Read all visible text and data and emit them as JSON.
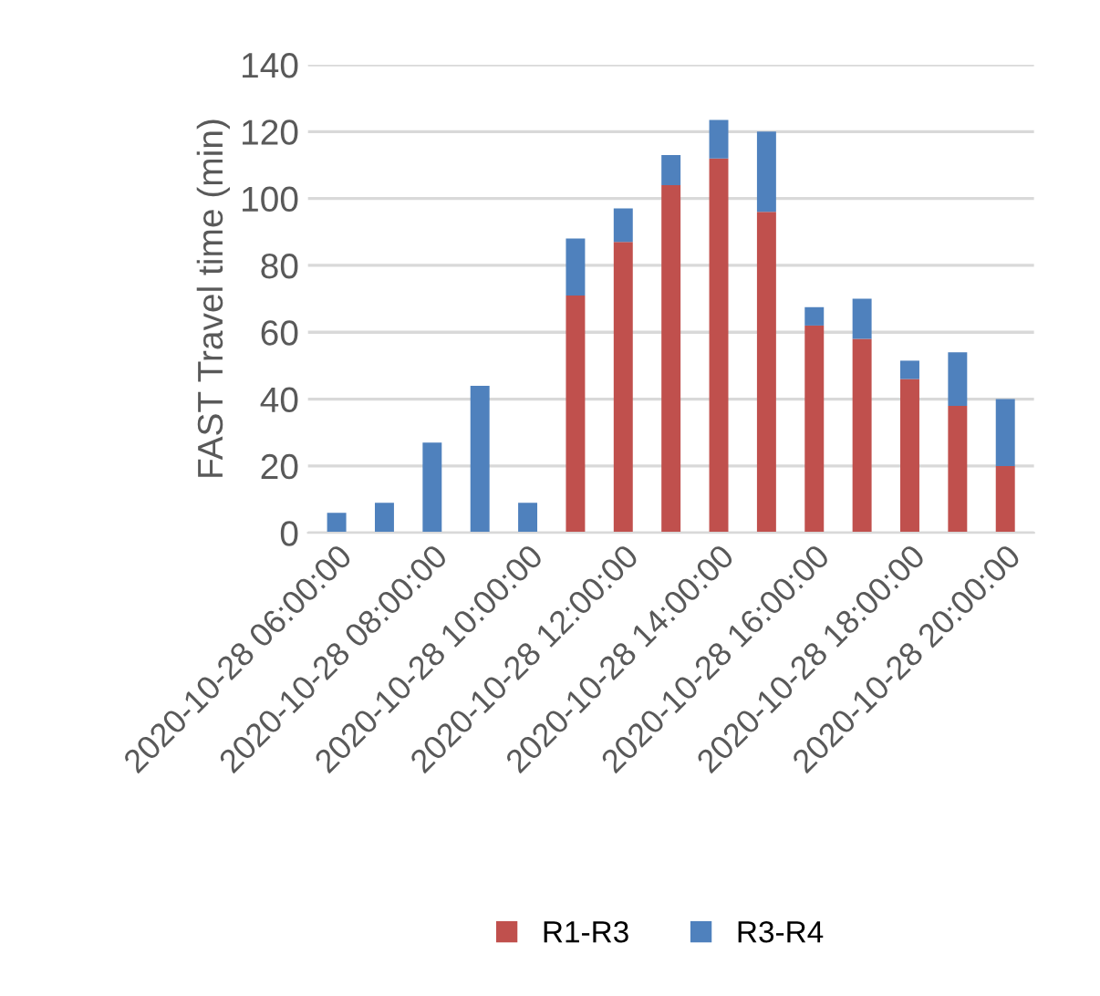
{
  "chart_data": {
    "type": "bar",
    "stacked": true,
    "ylabel": "FAST Travel time (min)",
    "categories": [
      "2020-10-28 06:00:00",
      null,
      "2020-10-28 08:00:00",
      null,
      "2020-10-28 10:00:00",
      null,
      "2020-10-28 12:00:00",
      null,
      "2020-10-28 14:00:00",
      null,
      "2020-10-28 16:00:00",
      null,
      "2020-10-28 18:00:00",
      null,
      "2020-10-28 20:00:00"
    ],
    "series": [
      {
        "name": "R1-R3",
        "color": "#c0504d",
        "values": [
          0,
          0,
          0,
          0,
          0,
          71,
          87,
          104,
          112,
          96,
          62,
          58,
          46,
          38,
          20
        ]
      },
      {
        "name": "R3-R4",
        "color": "#4f81bd",
        "values": [
          6,
          9,
          27,
          44,
          9,
          17,
          10,
          9,
          11.5,
          24,
          5.5,
          12,
          5.5,
          16,
          20
        ]
      }
    ],
    "ylim": [
      0,
      140
    ],
    "yticks": [
      0,
      20,
      40,
      60,
      80,
      100,
      120,
      140
    ],
    "grid": "y",
    "legend": "bottom"
  }
}
